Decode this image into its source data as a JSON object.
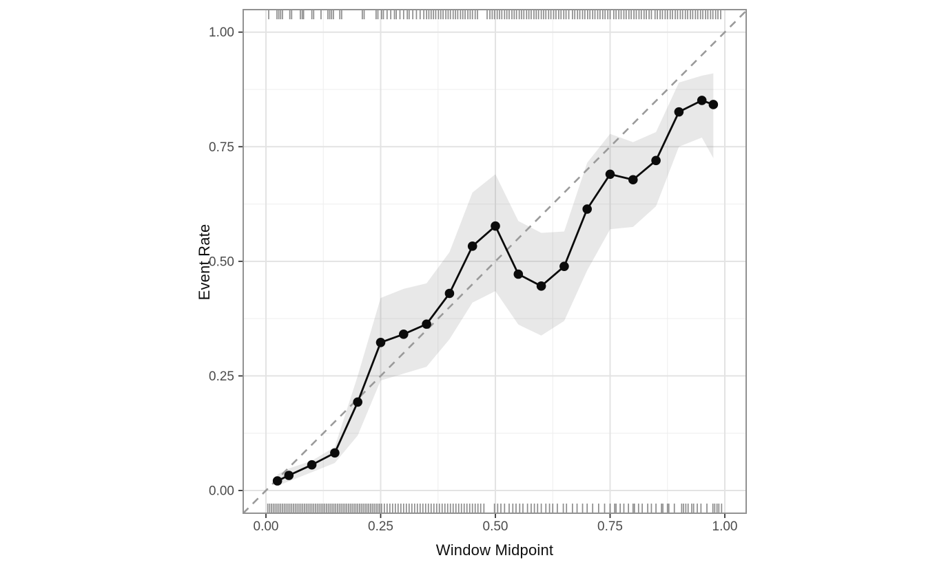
{
  "figure": {
    "x_axis_title": "Window Midpoint",
    "y_axis_title": "Event Rate"
  },
  "chart_data": {
    "type": "line",
    "title": "",
    "xlabel": "Window Midpoint",
    "ylabel": "Event Rate",
    "grid": "major+minor",
    "legend": "none",
    "x_axis": {
      "ticks": [
        0,
        0.25,
        0.5,
        0.75,
        1.0
      ],
      "tick_labels": [
        "0.00",
        "0.25",
        "0.50",
        "0.75",
        "1.00"
      ],
      "minor": [
        0.125,
        0.375,
        0.625,
        0.875
      ],
      "range": [
        -0.05,
        1.047
      ]
    },
    "y_axis": {
      "ticks": [
        0,
        0.25,
        0.5,
        0.75,
        1.0
      ],
      "tick_labels": [
        "0.00",
        "0.25",
        "0.50",
        "0.75",
        "1.00"
      ],
      "minor": [
        0.125,
        0.375,
        0.625,
        0.875
      ],
      "range": [
        -0.05,
        1.049
      ]
    },
    "series": [
      {
        "name": "calibration_curve",
        "type": "line+points",
        "x": [
          0.025,
          0.05,
          0.1,
          0.15,
          0.2,
          0.25,
          0.3,
          0.35,
          0.4,
          0.45,
          0.5,
          0.55,
          0.6,
          0.65,
          0.7,
          0.75,
          0.8,
          0.85,
          0.9,
          0.95,
          0.975
        ],
        "y": [
          0.021,
          0.033,
          0.056,
          0.082,
          0.193,
          0.323,
          0.341,
          0.363,
          0.43,
          0.533,
          0.577,
          0.472,
          0.446,
          0.489,
          0.614,
          0.69,
          0.678,
          0.72,
          0.826,
          0.851,
          0.842
        ]
      },
      {
        "name": "confidence_band",
        "type": "ribbon",
        "x": [
          0.025,
          0.05,
          0.1,
          0.15,
          0.2,
          0.25,
          0.3,
          0.35,
          0.4,
          0.45,
          0.5,
          0.55,
          0.6,
          0.65,
          0.7,
          0.75,
          0.8,
          0.85,
          0.9,
          0.95,
          0.975
        ],
        "lower": [
          0.01,
          0.02,
          0.04,
          0.06,
          0.12,
          0.24,
          0.255,
          0.27,
          0.33,
          0.41,
          0.435,
          0.362,
          0.338,
          0.37,
          0.48,
          0.57,
          0.575,
          0.62,
          0.75,
          0.77,
          0.725
        ],
        "upper": [
          0.035,
          0.048,
          0.065,
          0.095,
          0.25,
          0.42,
          0.44,
          0.452,
          0.52,
          0.65,
          0.69,
          0.588,
          0.562,
          0.565,
          0.715,
          0.778,
          0.76,
          0.782,
          0.89,
          0.905,
          0.91
        ]
      },
      {
        "name": "identity_reference",
        "type": "dashed-line",
        "x": [
          -0.05,
          1.047
        ],
        "y": [
          -0.05,
          1.047
        ]
      }
    ],
    "rug_top_x": [
      0.006,
      0.024,
      0.028,
      0.032,
      0.036,
      0.052,
      0.056,
      0.075,
      0.079,
      0.082,
      0.1,
      0.104,
      0.12,
      0.135,
      0.139,
      0.143,
      0.147,
      0.161,
      0.165,
      0.21,
      0.214,
      0.24,
      0.244,
      0.252,
      0.256,
      0.264,
      0.272,
      0.28,
      0.284,
      0.292,
      0.3,
      0.308,
      0.312,
      0.32,
      0.328,
      0.336,
      0.344,
      0.35,
      0.355,
      0.36,
      0.365,
      0.37,
      0.376,
      0.381,
      0.386,
      0.392,
      0.397,
      0.402,
      0.408,
      0.413,
      0.418,
      0.424,
      0.429,
      0.434,
      0.44,
      0.445,
      0.45,
      0.456,
      0.461,
      0.482,
      0.488,
      0.493,
      0.498,
      0.504,
      0.509,
      0.514,
      0.52,
      0.525,
      0.53,
      0.536,
      0.541,
      0.546,
      0.552,
      0.557,
      0.562,
      0.568,
      0.573,
      0.578,
      0.584,
      0.589,
      0.594,
      0.6,
      0.605,
      0.61,
      0.616,
      0.621,
      0.627,
      0.632,
      0.638,
      0.643,
      0.649,
      0.654,
      0.66,
      0.668,
      0.673,
      0.679,
      0.684,
      0.69,
      0.695,
      0.701,
      0.706,
      0.712,
      0.717,
      0.723,
      0.728,
      0.734,
      0.739,
      0.745,
      0.75,
      0.758,
      0.763,
      0.769,
      0.774,
      0.78,
      0.785,
      0.791,
      0.796,
      0.802,
      0.807,
      0.813,
      0.818,
      0.824,
      0.829,
      0.835,
      0.84,
      0.848,
      0.853,
      0.859,
      0.864,
      0.87,
      0.875,
      0.881,
      0.886,
      0.892,
      0.897,
      0.903,
      0.908,
      0.914,
      0.919,
      0.925,
      0.93,
      0.936,
      0.941,
      0.947,
      0.952,
      0.958,
      0.963,
      0.969,
      0.974,
      0.98,
      0.985,
      0.991
    ],
    "rug_bottom_x": [
      0.004,
      0.008,
      0.012,
      0.016,
      0.02,
      0.024,
      0.028,
      0.032,
      0.036,
      0.04,
      0.044,
      0.048,
      0.052,
      0.056,
      0.06,
      0.064,
      0.068,
      0.072,
      0.076,
      0.08,
      0.084,
      0.088,
      0.092,
      0.096,
      0.1,
      0.104,
      0.108,
      0.112,
      0.116,
      0.12,
      0.124,
      0.128,
      0.132,
      0.136,
      0.14,
      0.144,
      0.148,
      0.152,
      0.156,
      0.16,
      0.164,
      0.168,
      0.172,
      0.176,
      0.18,
      0.184,
      0.188,
      0.192,
      0.196,
      0.2,
      0.204,
      0.208,
      0.212,
      0.216,
      0.22,
      0.224,
      0.228,
      0.232,
      0.236,
      0.24,
      0.244,
      0.248,
      0.252,
      0.258,
      0.264,
      0.27,
      0.276,
      0.282,
      0.288,
      0.294,
      0.3,
      0.306,
      0.312,
      0.318,
      0.324,
      0.33,
      0.336,
      0.342,
      0.348,
      0.354,
      0.36,
      0.366,
      0.372,
      0.378,
      0.384,
      0.39,
      0.396,
      0.402,
      0.408,
      0.414,
      0.42,
      0.426,
      0.432,
      0.438,
      0.444,
      0.45,
      0.456,
      0.462,
      0.468,
      0.475,
      0.498,
      0.505,
      0.512,
      0.52,
      0.53,
      0.538,
      0.545,
      0.553,
      0.56,
      0.57,
      0.578,
      0.585,
      0.592,
      0.6,
      0.61,
      0.618,
      0.625,
      0.635,
      0.648,
      0.655,
      0.668,
      0.678,
      0.69,
      0.7,
      0.712,
      0.725,
      0.738,
      0.75,
      0.76,
      0.763,
      0.772,
      0.78,
      0.79,
      0.8,
      0.803,
      0.812,
      0.82,
      0.832,
      0.84,
      0.85,
      0.862,
      0.865,
      0.875,
      0.878,
      0.89,
      0.906,
      0.91,
      0.915,
      0.92,
      0.928,
      0.932,
      0.94,
      0.948,
      0.961,
      0.974,
      0.978,
      0.983,
      0.987,
      0.993
    ],
    "colors": {
      "line": "#0b0b0b",
      "point": "#0b0b0b",
      "ribbon": "rgba(125,125,125,0.18)",
      "identity": "#9a9a9a",
      "grid_major": "#e3e3e3",
      "grid_minor": "#f0f0f0",
      "panel_border": "#919191",
      "tick": "#343434",
      "tick_label": "#4b4b4b",
      "axis_title": "#0e0e0e",
      "rug": "rgba(70,70,70,0.62)",
      "background": "#ffffff"
    }
  }
}
